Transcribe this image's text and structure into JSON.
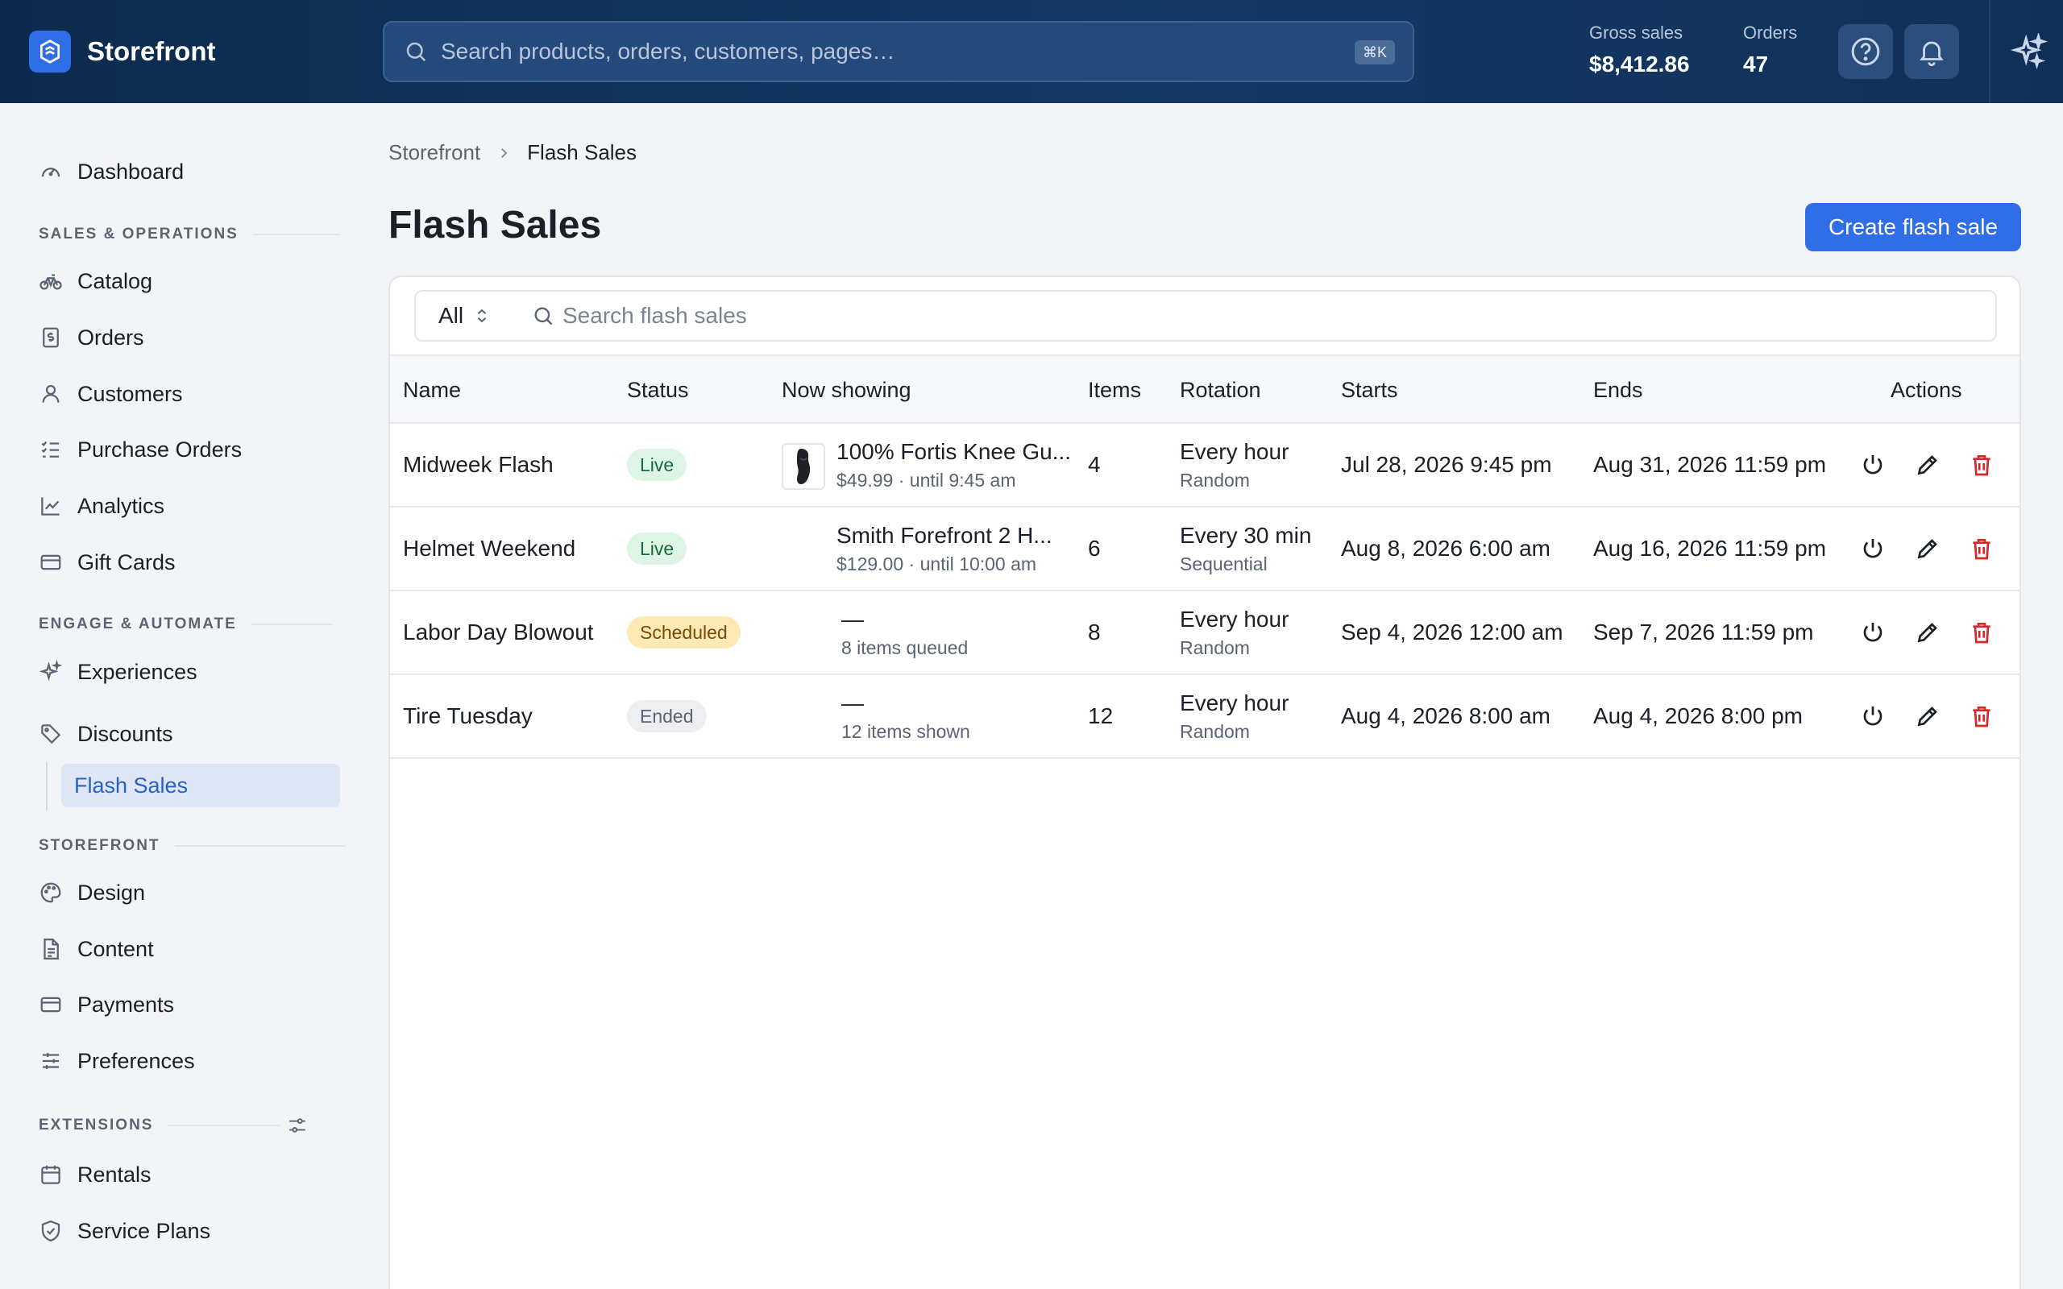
{
  "topbar": {
    "brand": "Storefront",
    "search_placeholder": "Search products, orders, customers, pages…",
    "search_shortcut": "⌘K",
    "gross_sales_label": "Gross sales",
    "gross_sales_value": "$8,412.86",
    "orders_label": "Orders",
    "orders_value": "47"
  },
  "sidebar": {
    "dashboard": "Dashboard",
    "sections": {
      "sales_ops": "SALES & OPERATIONS",
      "engage": "ENGAGE & AUTOMATE",
      "storefront": "STOREFRONT",
      "extensions": "EXTENSIONS"
    },
    "items": {
      "catalog": "Catalog",
      "orders": "Orders",
      "customers": "Customers",
      "purchase_orders": "Purchase Orders",
      "analytics": "Analytics",
      "gift_cards": "Gift Cards",
      "experiences": "Experiences",
      "discounts": "Discounts",
      "flash_sales": "Flash Sales",
      "design": "Design",
      "content": "Content",
      "payments": "Payments",
      "preferences": "Preferences",
      "rentals": "Rentals",
      "service_plans": "Service Plans"
    }
  },
  "main": {
    "breadcrumb_root": "Storefront",
    "breadcrumb_current": "Flash Sales",
    "title": "Flash Sales",
    "create_button": "Create flash sale",
    "filter_value": "All",
    "search_placeholder": "Search flash sales",
    "columns": {
      "name": "Name",
      "status": "Status",
      "now_showing": "Now showing",
      "items": "Items",
      "rotation": "Rotation",
      "starts": "Starts",
      "ends": "Ends",
      "actions": "Actions"
    },
    "rows": [
      {
        "name": "Midweek Flash",
        "status": "Live",
        "now_title": "100% Fortis Knee Gu...",
        "now_sub": "$49.99 · until 9:45 am",
        "items": "4",
        "rotation": "Every hour",
        "rotation_mode": "Random",
        "starts": "Jul 28, 2026 9:45 pm",
        "ends": "Aug 31, 2026 11:59 pm"
      },
      {
        "name": "Helmet Weekend",
        "status": "Live",
        "now_title": "Smith Forefront 2 H...",
        "now_sub": "$129.00 · until 10:00 am",
        "items": "6",
        "rotation": "Every 30 min",
        "rotation_mode": "Sequential",
        "starts": "Aug 8, 2026 6:00 am",
        "ends": "Aug 16, 2026 11:59 pm"
      },
      {
        "name": "Labor Day Blowout",
        "status": "Scheduled",
        "now_title": "—",
        "now_sub": "8 items queued",
        "items": "8",
        "rotation": "Every hour",
        "rotation_mode": "Random",
        "starts": "Sep 4, 2026 12:00 am",
        "ends": "Sep 7, 2026 11:59 pm"
      },
      {
        "name": "Tire Tuesday",
        "status": "Ended",
        "now_title": "—",
        "now_sub": "12 items shown",
        "items": "12",
        "rotation": "Every hour",
        "rotation_mode": "Random",
        "starts": "Aug 4, 2026 8:00 am",
        "ends": "Aug 4, 2026 8:00 pm"
      }
    ]
  },
  "colors": {
    "accent": "#2f6ee6",
    "topbar": "#0b2a4d",
    "danger": "#dc2626",
    "live": "#1b6a3a",
    "scheduled": "#7a4a06"
  }
}
